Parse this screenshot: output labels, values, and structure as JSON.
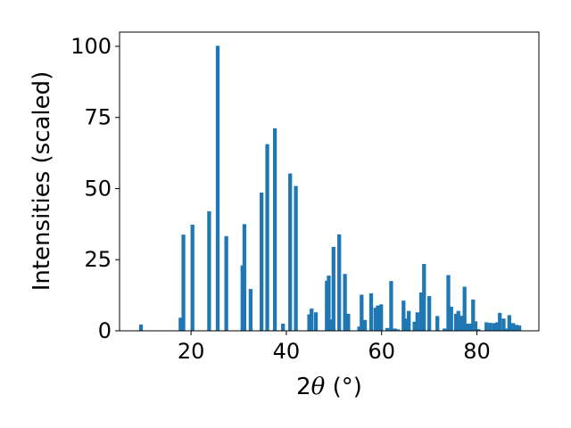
{
  "chart_data": {
    "type": "bar",
    "xlabel_prefix": "2",
    "xlabel_symbol": "θ",
    "xlabel_suffix": " (°)",
    "ylabel": "Intensities (scaled)",
    "xlim": [
      5,
      93
    ],
    "ylim": [
      0,
      105
    ],
    "xticks": [
      20,
      40,
      60,
      80
    ],
    "yticks": [
      0,
      25,
      50,
      75,
      100
    ],
    "bar_color": "#1f77b4",
    "bar_width": 0.8,
    "grid": false,
    "x": [
      9.5,
      17.8,
      18.4,
      20.3,
      23.8,
      25.6,
      27.4,
      30.8,
      31.2,
      32.5,
      34.8,
      36.0,
      37.6,
      39.3,
      40.8,
      42.0,
      44.8,
      45.3,
      46.2,
      48.5,
      48.9,
      49.5,
      49.9,
      51.1,
      52.3,
      53.0,
      55.3,
      55.8,
      56.5,
      57.8,
      58.7,
      59.2,
      59.9,
      61.2,
      62.0,
      62.8,
      63.4,
      64.6,
      65.0,
      65.7,
      66.9,
      67.5,
      68.3,
      68.9,
      70.0,
      71.7,
      73.2,
      74.0,
      74.6,
      75.6,
      76.1,
      76.7,
      77.4,
      77.9,
      78.6,
      79.2,
      79.7,
      80.3,
      82.0,
      82.8,
      83.6,
      84.3,
      84.8,
      85.6,
      86.3,
      86.8,
      87.6,
      88.3,
      88.9
    ],
    "values": [
      2.2,
      4.6,
      33.8,
      37.3,
      42.0,
      100.2,
      33.3,
      23.0,
      37.5,
      14.7,
      48.6,
      65.6,
      71.2,
      2.5,
      55.3,
      50.9,
      5.8,
      7.8,
      6.5,
      17.6,
      19.4,
      4.0,
      29.5,
      33.9,
      20.0,
      6.0,
      1.5,
      12.7,
      3.8,
      13.2,
      8.1,
      8.9,
      9.3,
      1.0,
      17.5,
      0.8,
      0.5,
      10.6,
      4.3,
      7.0,
      3.2,
      6.5,
      13.5,
      23.5,
      12.2,
      5.2,
      0.8,
      19.6,
      8.5,
      6.0,
      7.0,
      5.3,
      15.5,
      2.5,
      2.5,
      11.0,
      3.3,
      0.6,
      3.0,
      2.8,
      2.7,
      3.0,
      6.3,
      4.3,
      0.8,
      5.5,
      2.7,
      2.1,
      1.9
    ]
  }
}
